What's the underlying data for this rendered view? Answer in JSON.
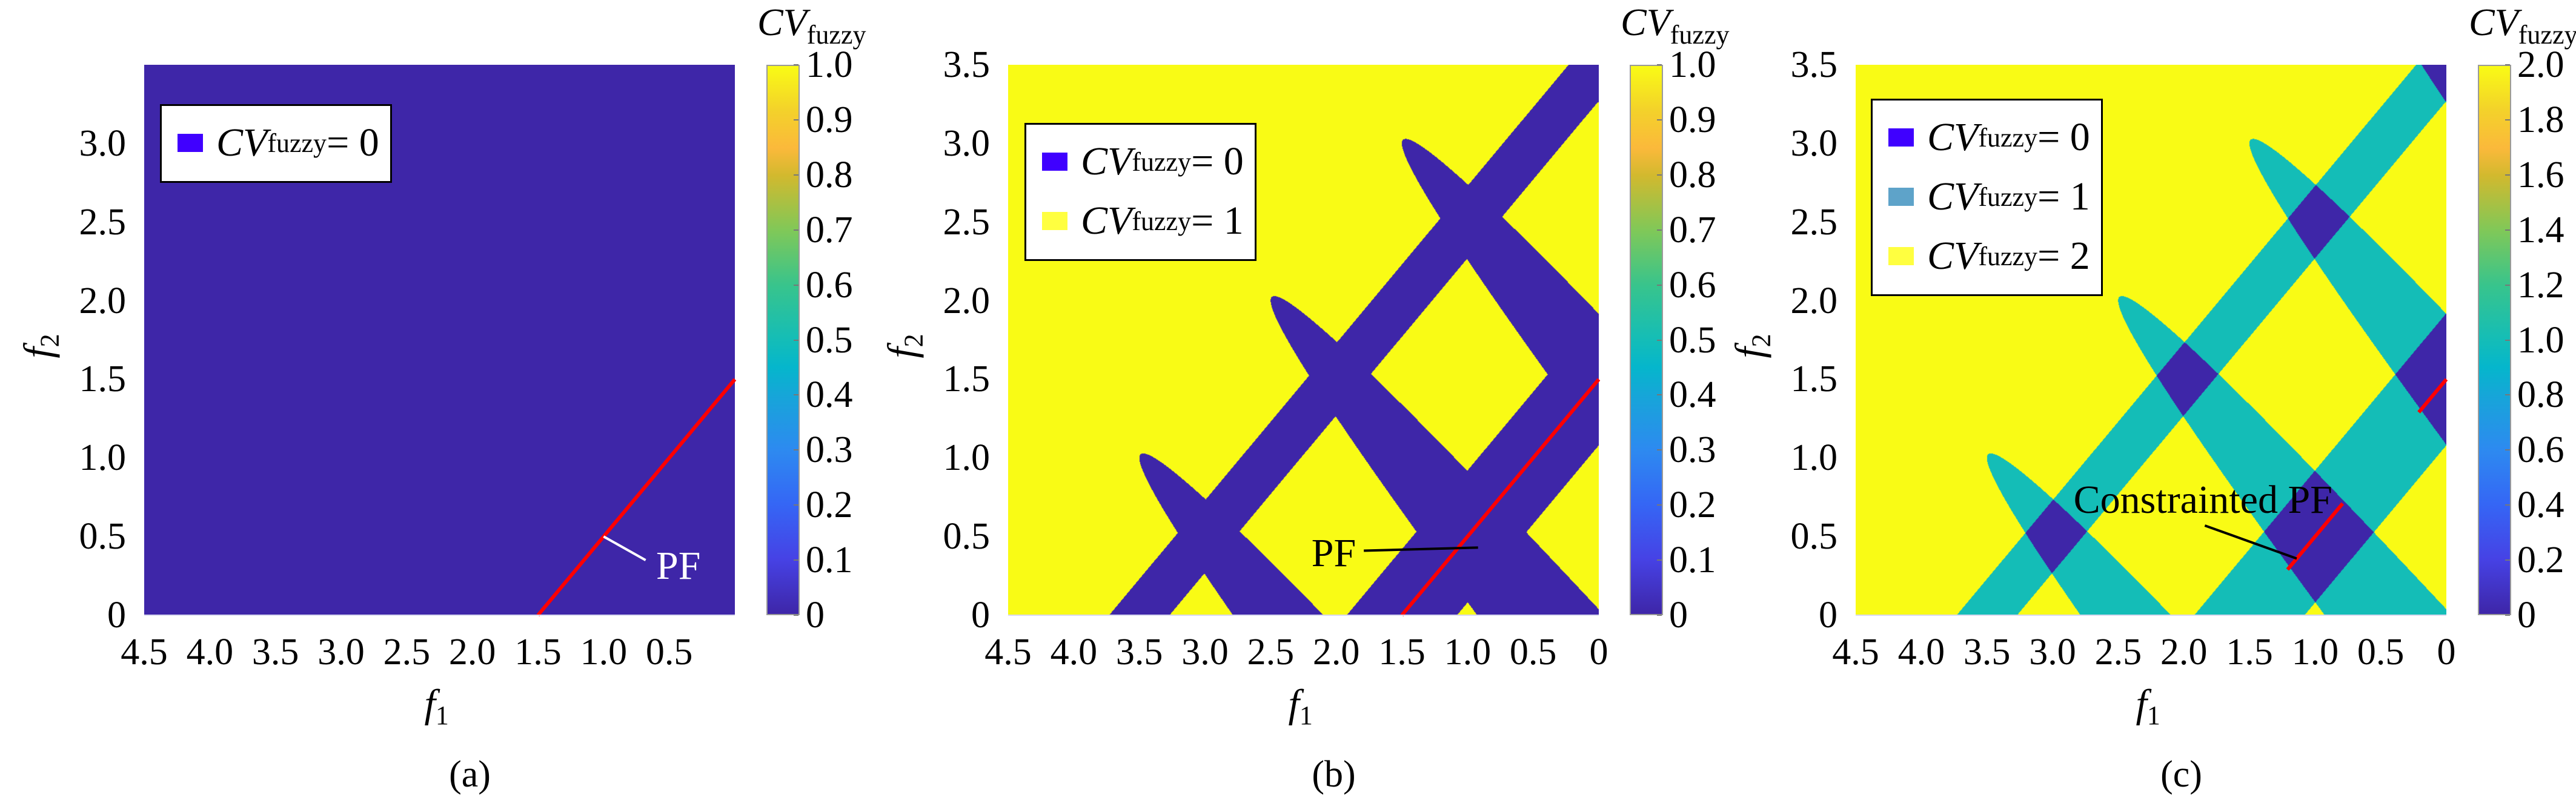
{
  "figure": {
    "captions": [
      "(a)",
      "(b)",
      "(c)"
    ]
  },
  "constraint_regions": {
    "up_bands": [
      {
        "c": 3.5,
        "half_width": 0.23
      },
      {
        "c": 1.5,
        "half_width": 0.42
      }
    ],
    "down_bands": [
      {
        "c": -2.5,
        "tip_f1": 3.5,
        "k": 0.34
      },
      {
        "c": -0.5,
        "tip_f1": 2.5,
        "k": 0.34
      },
      {
        "c": 1.5,
        "tip_f1": 1.5,
        "k": 0.34
      },
      {
        "c": 3.5,
        "tip_f1": 0.5,
        "k": 0.34
      }
    ]
  },
  "colors": {
    "parula": [
      [
        0,
        "#3e26a8"
      ],
      [
        0.1,
        "#4642e5"
      ],
      [
        0.2,
        "#3566f5"
      ],
      [
        0.3,
        "#2d8af0"
      ],
      [
        0.4,
        "#16a6d8"
      ],
      [
        0.45,
        "#05b6cc"
      ],
      [
        0.5,
        "#14bdb7"
      ],
      [
        0.6,
        "#38c48c"
      ],
      [
        0.7,
        "#80c858"
      ],
      [
        0.8,
        "#d2b92e"
      ],
      [
        0.85,
        "#fbb93b"
      ],
      [
        0.92,
        "#f3d22a"
      ],
      [
        1,
        "#f9fb15"
      ]
    ],
    "pf_line": "#ff0000"
  },
  "chart_data": [
    {
      "type": "heatmap",
      "caption": "(a)",
      "xlabel": {
        "var": "f",
        "sub": "1"
      },
      "ylabel": {
        "var": "f",
        "sub": "2"
      },
      "xlim": [
        4.5,
        0
      ],
      "ylim": [
        0,
        3.5
      ],
      "xticks": {
        "values": [
          4.5,
          4,
          3.5,
          3,
          2.5,
          2,
          1.5,
          1,
          0.5
        ],
        "labels": [
          "4.5",
          "4.0",
          "3.5",
          "3.0",
          "2.5",
          "2.0",
          "1.5",
          "1.0",
          "0.5"
        ]
      },
      "yticks": {
        "values": [
          0,
          0.5,
          1,
          1.5,
          2,
          2.5,
          3
        ],
        "labels": [
          "0",
          "0.5",
          "1.0",
          "1.5",
          "2.0",
          "2.5",
          "3.0"
        ]
      },
      "field": {
        "mode": "all_zero",
        "range": [
          0,
          1
        ]
      },
      "colorbar": {
        "title_var": "CV",
        "title_sub": "fuzzy",
        "range": [
          0,
          1
        ],
        "ticks": [
          0,
          0.1,
          0.2,
          0.3,
          0.4,
          0.5,
          0.6,
          0.7,
          0.8,
          0.9,
          1.0
        ],
        "labels": [
          "0",
          "0.1",
          "0.2",
          "0.3",
          "0.4",
          "0.5",
          "0.6",
          "0.7",
          "0.8",
          "0.9",
          "1.0"
        ]
      },
      "legend": {
        "position": "top-left",
        "entries": [
          {
            "var": "CV",
            "sub": "fuzzy",
            "rest": " = 0",
            "color": "#4000ff"
          }
        ]
      },
      "pf_segments": [
        [
          [
            1.5,
            0
          ],
          [
            0,
            1.5
          ]
        ]
      ],
      "annotation": {
        "text": "PF",
        "color": "#ffffff",
        "text_at": [
          0.6,
          0.3
        ],
        "anchor": "start",
        "leader_from": [
          0.68,
          0.35
        ],
        "points_to": [
          1.0,
          0.5
        ]
      }
    },
    {
      "type": "heatmap",
      "caption": "(b)",
      "xlabel": {
        "var": "f",
        "sub": "1"
      },
      "ylabel": {
        "var": "f",
        "sub": "2"
      },
      "xlim": [
        4.5,
        0
      ],
      "ylim": [
        0,
        3.5
      ],
      "xticks": {
        "values": [
          4.5,
          4,
          3.5,
          3,
          2.5,
          2,
          1.5,
          1,
          0.5,
          0
        ],
        "labels": [
          "4.5",
          "4.0",
          "3.5",
          "3.0",
          "2.5",
          "2.0",
          "1.5",
          "1.0",
          "0.5",
          "0"
        ]
      },
      "yticks": {
        "values": [
          0,
          0.5,
          1,
          1.5,
          2,
          2.5,
          3,
          3.5
        ],
        "labels": [
          "0",
          "0.5",
          "1.0",
          "1.5",
          "2.0",
          "2.5",
          "3.0",
          "3.5"
        ]
      },
      "field": {
        "mode": "union",
        "range": [
          0,
          1
        ]
      },
      "colorbar": {
        "title_var": "CV",
        "title_sub": "fuzzy",
        "range": [
          0,
          1
        ],
        "ticks": [
          0,
          0.1,
          0.2,
          0.3,
          0.4,
          0.5,
          0.6,
          0.7,
          0.8,
          0.9,
          1.0
        ],
        "labels": [
          "0",
          "0.1",
          "0.2",
          "0.3",
          "0.4",
          "0.5",
          "0.6",
          "0.7",
          "0.8",
          "0.9",
          "1.0"
        ]
      },
      "legend": {
        "position": "top-left",
        "entries": [
          {
            "var": "CV",
            "sub": "fuzzy",
            "rest": " = 0",
            "color": "#3f00ff"
          },
          {
            "var": "CV",
            "sub": "fuzzy",
            "rest": " = 1",
            "color": "#ffff40"
          }
        ]
      },
      "pf_segments": [
        [
          [
            1.5,
            0
          ],
          [
            0,
            1.5
          ]
        ]
      ],
      "annotation": {
        "text": "PF",
        "color": "#000000",
        "text_at": [
          1.85,
          0.38
        ],
        "anchor": "end",
        "leader_from": [
          1.79,
          0.41
        ],
        "points_to": [
          0.92,
          0.43
        ]
      }
    },
    {
      "type": "heatmap",
      "caption": "(c)",
      "xlabel": {
        "var": "f",
        "sub": "1"
      },
      "ylabel": {
        "var": "f",
        "sub": "2"
      },
      "xlim": [
        4.5,
        0
      ],
      "ylim": [
        0,
        3.5
      ],
      "xticks": {
        "values": [
          4.5,
          4,
          3.5,
          3,
          2.5,
          2,
          1.5,
          1,
          0.5,
          0
        ],
        "labels": [
          "4.5",
          "4.0",
          "3.5",
          "3.0",
          "2.5",
          "2.0",
          "1.5",
          "1.0",
          "0.5",
          "0"
        ]
      },
      "yticks": {
        "values": [
          0,
          0.5,
          1,
          1.5,
          2,
          2.5,
          3,
          3.5
        ],
        "labels": [
          "0",
          "0.5",
          "1.0",
          "1.5",
          "2.0",
          "2.5",
          "3.0",
          "3.5"
        ]
      },
      "field": {
        "mode": "count",
        "range": [
          0,
          2
        ]
      },
      "colorbar": {
        "title_var": "CV",
        "title_sub": "fuzzy",
        "range": [
          0,
          2
        ],
        "ticks": [
          0,
          0.2,
          0.4,
          0.6,
          0.8,
          1.0,
          1.2,
          1.4,
          1.6,
          1.8,
          2.0
        ],
        "labels": [
          "0",
          "0.2",
          "0.4",
          "0.6",
          "0.8",
          "1.0",
          "1.2",
          "1.4",
          "1.6",
          "1.8",
          "2.0"
        ]
      },
      "legend": {
        "position": "top-left",
        "entries": [
          {
            "var": "CV",
            "sub": "fuzzy",
            "rest": " = 0",
            "color": "#3f00ff"
          },
          {
            "var": "CV",
            "sub": "fuzzy",
            "rest": " = 1",
            "color": "#5ea3c9"
          },
          {
            "var": "CV",
            "sub": "fuzzy",
            "rest": " = 2",
            "color": "#ffff40"
          }
        ]
      },
      "pf_segments": [
        [
          [
            1.21,
            0.29
          ],
          [
            0.79,
            0.71
          ]
        ],
        [
          [
            0.21,
            1.29
          ],
          [
            0,
            1.5
          ]
        ]
      ],
      "annotation": {
        "text": "Constrainted PF",
        "color": "#000000",
        "text_at": [
          2.84,
          0.72
        ],
        "anchor": "start",
        "leader_from": [
          1.84,
          0.57
        ],
        "points_to": [
          1.14,
          0.36
        ]
      }
    }
  ]
}
